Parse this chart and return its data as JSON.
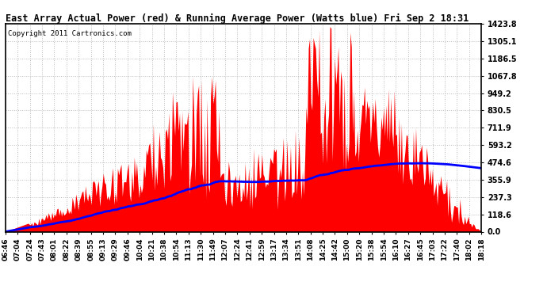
{
  "title": "East Array Actual Power (red) & Running Average Power (Watts blue) Fri Sep 2 18:31",
  "copyright": "Copyright 2011 Cartronics.com",
  "background_color": "#ffffff",
  "plot_bg_color": "#ffffff",
  "grid_color": "#bbbbbb",
  "y_ticks": [
    0.0,
    118.6,
    237.3,
    355.9,
    474.6,
    593.2,
    711.9,
    830.5,
    949.2,
    1067.8,
    1186.5,
    1305.1,
    1423.8
  ],
  "ylim": [
    0,
    1423.8
  ],
  "x_labels": [
    "06:46",
    "07:04",
    "07:24",
    "07:43",
    "08:01",
    "08:22",
    "08:39",
    "08:55",
    "09:13",
    "09:29",
    "09:46",
    "10:04",
    "10:21",
    "10:38",
    "10:54",
    "11:13",
    "11:30",
    "11:49",
    "12:07",
    "12:24",
    "12:41",
    "12:59",
    "13:17",
    "13:34",
    "13:51",
    "14:08",
    "14:25",
    "14:42",
    "15:00",
    "15:20",
    "15:38",
    "15:54",
    "16:10",
    "16:27",
    "16:45",
    "17:03",
    "17:22",
    "17:40",
    "18:02",
    "18:18"
  ],
  "actual_color": "#ff0000",
  "avg_color": "#0000ff",
  "avg_linewidth": 2.0
}
